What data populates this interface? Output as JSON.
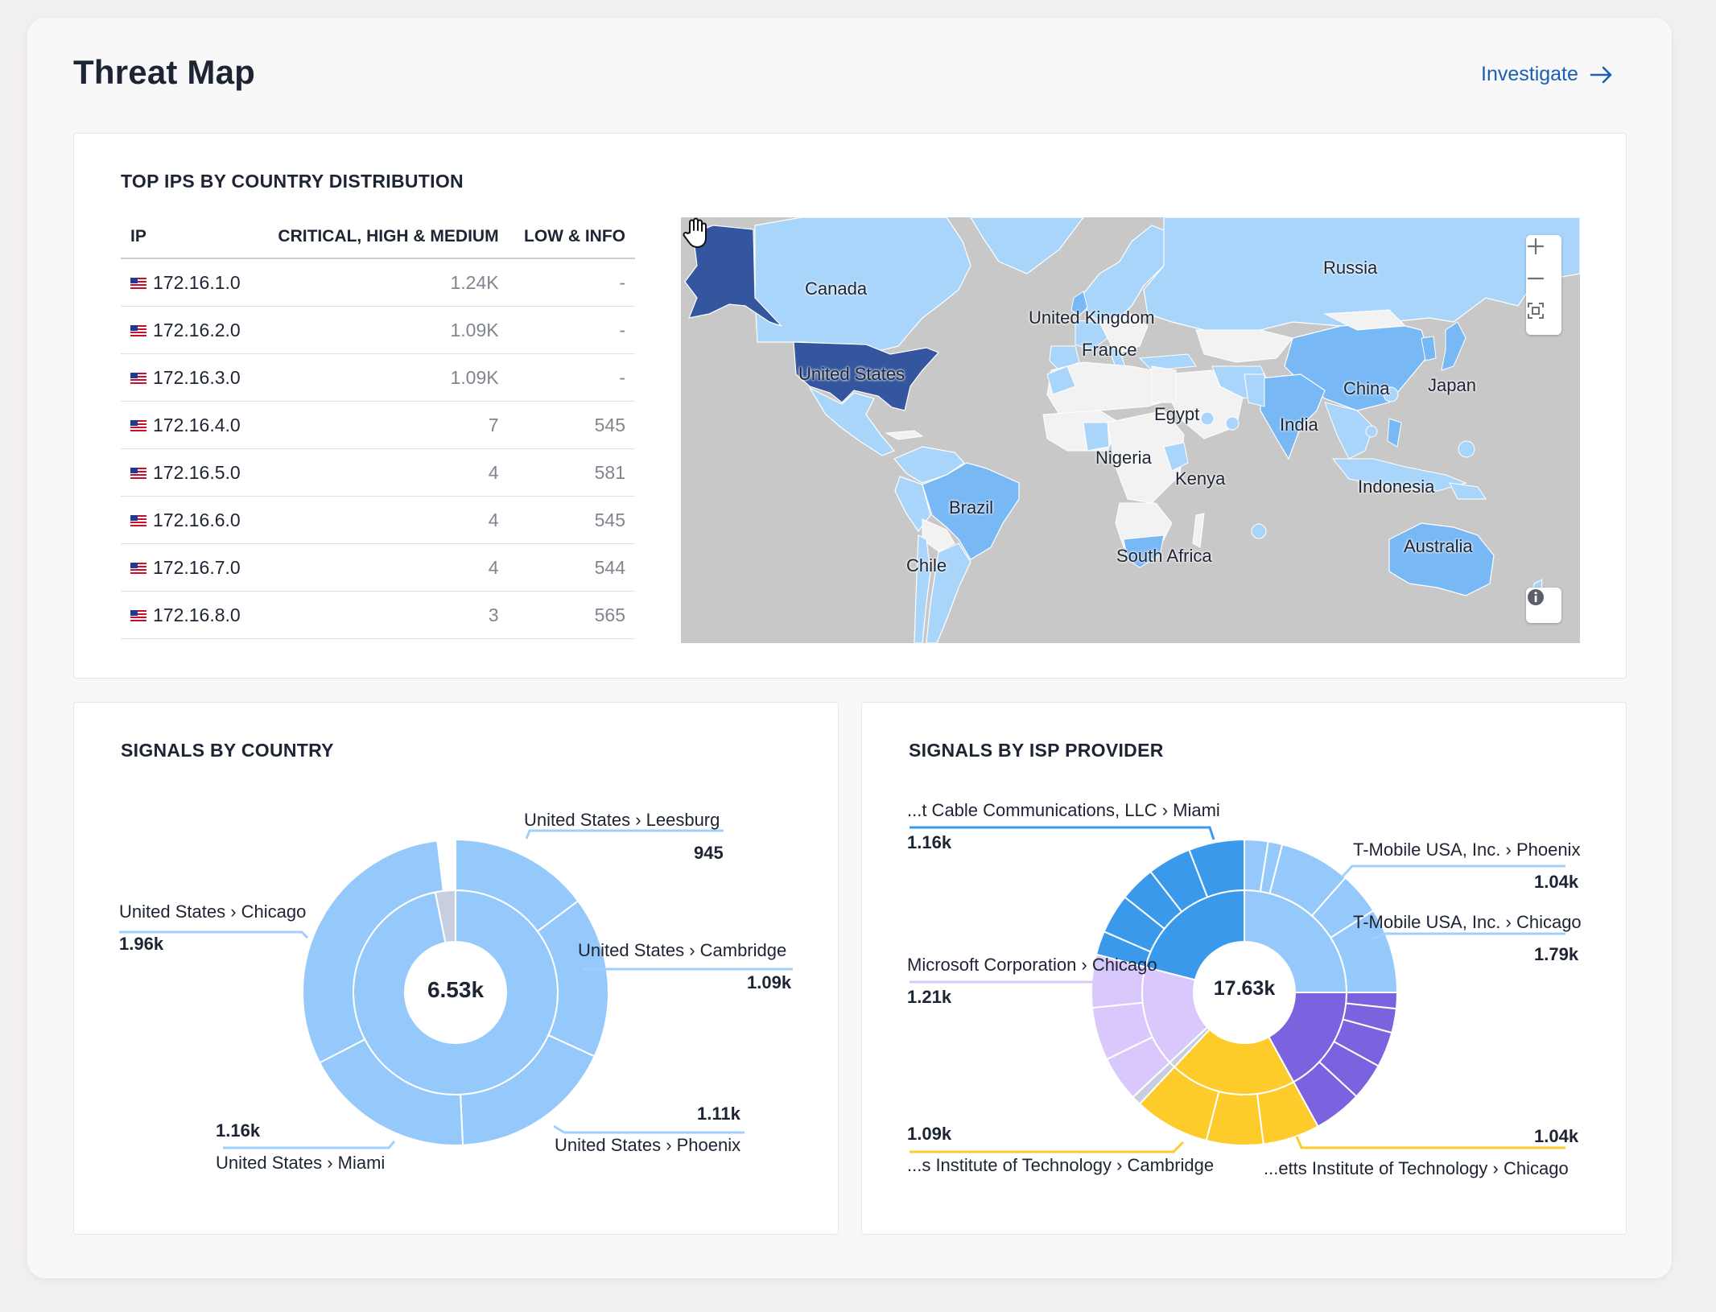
{
  "header": {
    "title": "Threat Map",
    "investigate_label": "Investigate"
  },
  "top_ips": {
    "title": "TOP IPS BY COUNTRY DISTRIBUTION",
    "columns": [
      "IP",
      "CRITICAL, HIGH & MEDIUM",
      "LOW & INFO"
    ],
    "rows": [
      {
        "ip": "172.16.1.0",
        "crit": "1.24K",
        "low": "-"
      },
      {
        "ip": "172.16.2.0",
        "crit": "1.09K",
        "low": "-"
      },
      {
        "ip": "172.16.3.0",
        "crit": "1.09K",
        "low": "-"
      },
      {
        "ip": "172.16.4.0",
        "crit": "7",
        "low": "545"
      },
      {
        "ip": "172.16.5.0",
        "crit": "4",
        "low": "581"
      },
      {
        "ip": "172.16.6.0",
        "crit": "4",
        "low": "545"
      },
      {
        "ip": "172.16.7.0",
        "crit": "4",
        "low": "544"
      },
      {
        "ip": "172.16.8.0",
        "crit": "3",
        "low": "565"
      }
    ]
  },
  "map": {
    "labels": [
      "Canada",
      "Russia",
      "United Kingdom",
      "France",
      "United States",
      "China",
      "Japan",
      "Egypt",
      "India",
      "Nigeria",
      "Kenya",
      "Indonesia",
      "Brazil",
      "Australia",
      "Chile",
      "South Africa"
    ],
    "colors": {
      "ocean": "#c8c8c8",
      "light": "#a9d5fa",
      "mid": "#78b8f5",
      "dark": "#34569f",
      "none": "#f2f2f2"
    }
  },
  "signals_country": {
    "title": "SIGNALS BY COUNTRY",
    "center": "6.53k",
    "callouts": [
      {
        "label": "United States › Leesburg",
        "value": "945"
      },
      {
        "label": "United States › Chicago",
        "value": "1.96k"
      },
      {
        "label": "United States › Cambridge",
        "value": "1.09k"
      },
      {
        "label": "United States › Phoenix",
        "value": "1.11k"
      },
      {
        "label": "United States › Miami",
        "value": "1.16k"
      }
    ]
  },
  "signals_isp": {
    "title": "SIGNALS BY ISP PROVIDER",
    "center": "17.63k",
    "callouts": [
      {
        "label": "...t Cable Communications, LLC › Miami",
        "value": "1.16k"
      },
      {
        "label": "T-Mobile USA, Inc. › Phoenix",
        "value": "1.04k"
      },
      {
        "label": "T-Mobile USA, Inc. › Chicago",
        "value": "1.79k"
      },
      {
        "label": "Microsoft Corporation › Chicago",
        "value": "1.21k"
      },
      {
        "label": "...s Institute of Technology › Cambridge",
        "value": "1.09k"
      },
      {
        "label": "...etts Institute of Technology › Chicago",
        "value": "1.04k"
      }
    ]
  },
  "chart_data": [
    {
      "type": "pie",
      "title": "SIGNALS BY COUNTRY",
      "center_total": "6.53k",
      "categories": [
        "United States › Leesburg",
        "United States › Cambridge",
        "United States › Phoenix",
        "United States › Miami",
        "United States › Chicago"
      ],
      "values": [
        945,
        1090,
        1110,
        1160,
        1960
      ]
    },
    {
      "type": "pie",
      "title": "SIGNALS BY ISP PROVIDER",
      "center_total": "17.63k",
      "categories": [
        "...t Cable Communications, LLC › Miami",
        "T-Mobile USA, Inc. › Phoenix",
        "T-Mobile USA, Inc. › Chicago",
        "Microsoft Corporation › Chicago",
        "...s Institute of Technology › Cambridge",
        "...etts Institute of Technology › Chicago"
      ],
      "values": [
        1160,
        1040,
        1790,
        1210,
        1090,
        1040
      ]
    }
  ]
}
